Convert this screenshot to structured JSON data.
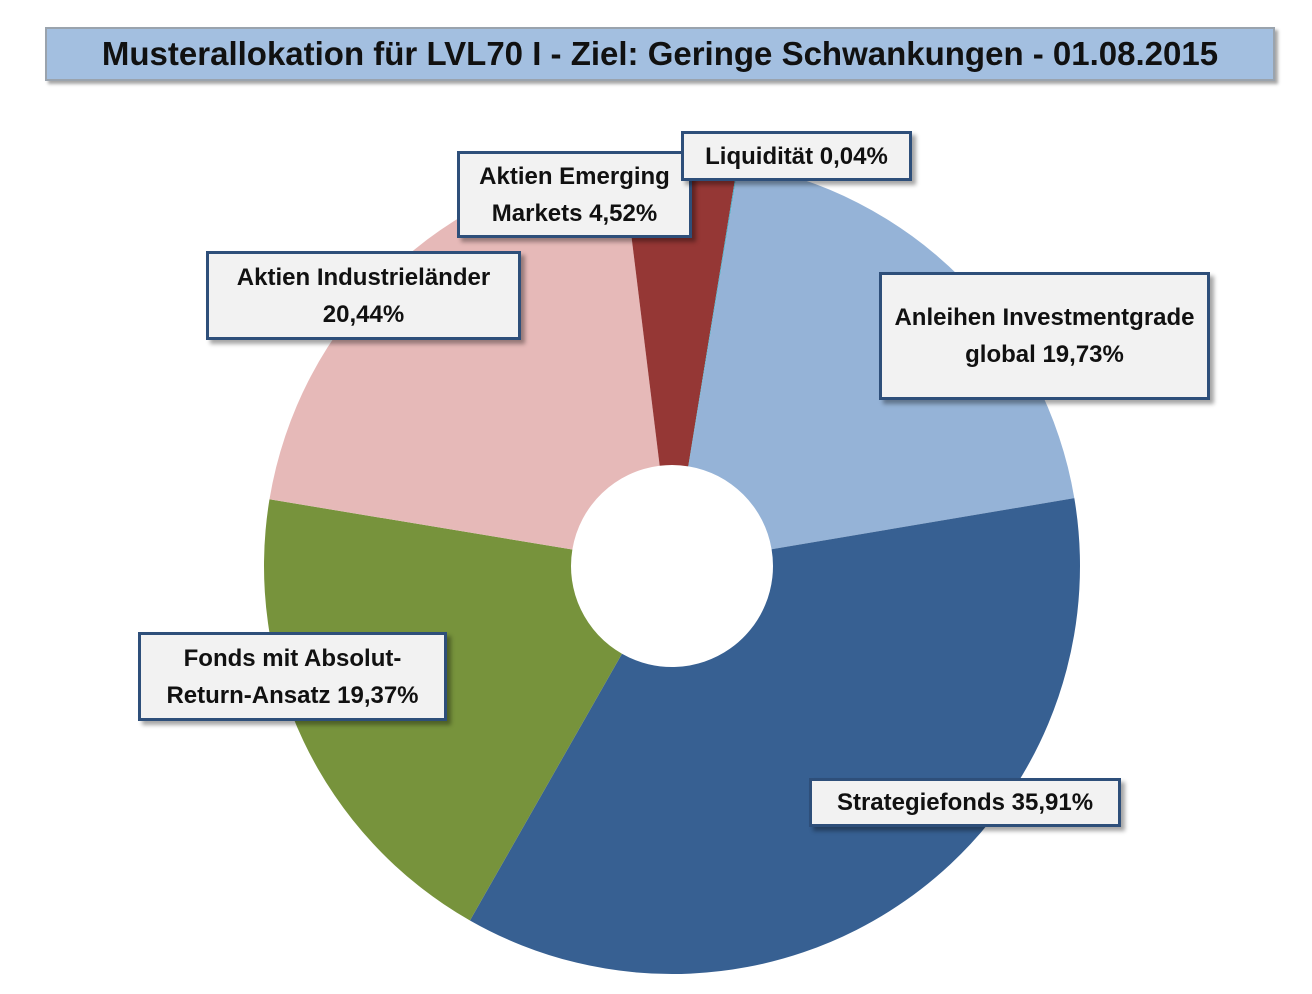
{
  "chart_data": {
    "type": "pie",
    "style": "donut",
    "title": "Musterallokation für LVL70 I - Ziel: Geringe Schwankungen - 01.08.2015",
    "slices": [
      {
        "name": "Anleihen Investmentgrade global",
        "value": 19.73,
        "label": "Anleihen Investmentgrade global 19,73%",
        "color": "#95b3d7"
      },
      {
        "name": "Strategiefonds",
        "value": 35.91,
        "label": "Strategiefonds 35,91%",
        "color": "#376092"
      },
      {
        "name": "Fonds mit Absolut-Return-Ansatz",
        "value": 19.37,
        "label": "Fonds mit Absolut-Return-Ansatz 19,37%",
        "color": "#77933c"
      },
      {
        "name": "Aktien Industrieländer",
        "value": 20.44,
        "label": "Aktien Industrieländer 20,44%",
        "color": "#e6b9b8"
      },
      {
        "name": "Aktien Emerging Markets",
        "value": 4.52,
        "label": "Aktien Emerging Markets 4,52%",
        "color": "#953735"
      },
      {
        "name": "Liquidität",
        "value": 0.04,
        "label": "Liquidität 0,04%",
        "color": "#4bacc6"
      }
    ],
    "legend": "none",
    "data_labels": true
  }
}
